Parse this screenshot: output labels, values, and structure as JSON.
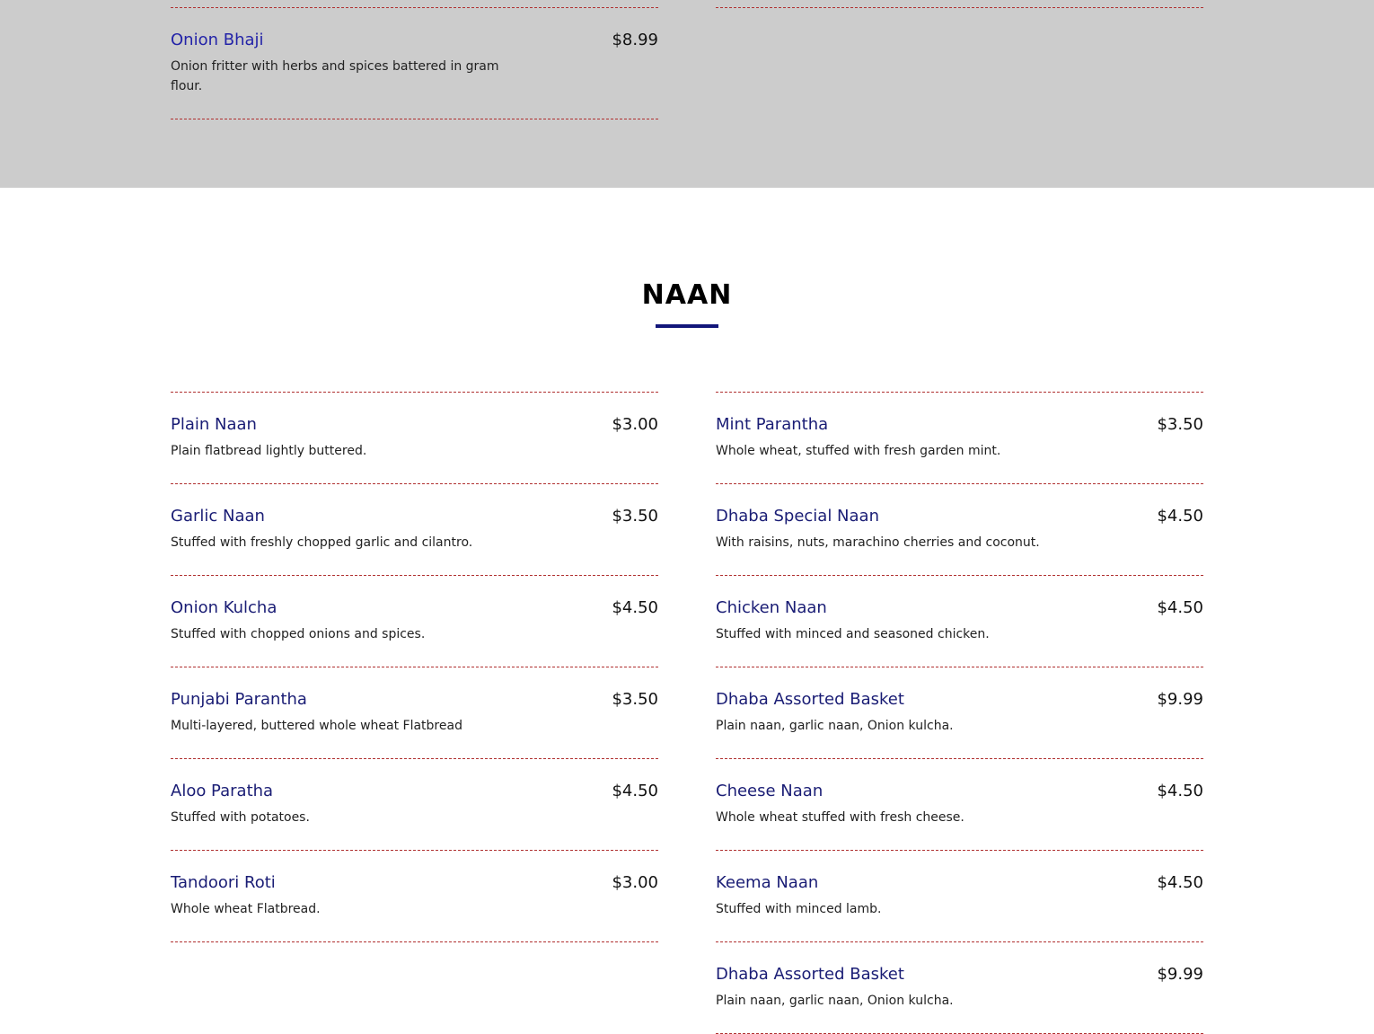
{
  "colors": {
    "gray_section": "#cccccc",
    "item_name": "#1a1d75",
    "item_name_prev_section": "#2323a8",
    "divider": "#b03030",
    "title_underline": "#12167a"
  },
  "previous_section": {
    "items": [
      {
        "name": "Onion Bhaji",
        "price": "$8.99",
        "desc_line1": "Onion fritter with herbs and spices battered in gram",
        "desc_line2": "flour."
      }
    ]
  },
  "naan": {
    "title": "NAAN",
    "left_items": [
      {
        "name": "Plain Naan",
        "price": "$3.00",
        "desc": "Plain flatbread lightly buttered."
      },
      {
        "name": "Garlic Naan",
        "price": "$3.50",
        "desc": "Stuffed with freshly chopped garlic and cilantro."
      },
      {
        "name": "Onion Kulcha",
        "price": "$4.50",
        "desc": "Stuffed with chopped onions and spices."
      },
      {
        "name": "Punjabi Parantha",
        "price": "$3.50",
        "desc": "Multi-layered, buttered whole wheat Flatbread"
      },
      {
        "name": "Aloo Paratha",
        "price": "$4.50",
        "desc": "Stuffed with potatoes."
      },
      {
        "name": "Tandoori Roti",
        "price": "$3.00",
        "desc": "Whole wheat Flatbread."
      }
    ],
    "right_items": [
      {
        "name": "Mint Parantha",
        "price": "$3.50",
        "desc": "Whole wheat, stuffed with fresh garden mint."
      },
      {
        "name": "Dhaba Special Naan",
        "price": "$4.50",
        "desc": "With raisins, nuts, marachino cherries and coconut."
      },
      {
        "name": "Chicken Naan",
        "price": "$4.50",
        "desc": "Stuffed with minced and seasoned chicken."
      },
      {
        "name": "Dhaba Assorted Basket",
        "price": "$9.99",
        "desc": "Plain naan, garlic naan, Onion kulcha."
      },
      {
        "name": "Cheese Naan",
        "price": "$4.50",
        "desc": "Whole wheat stuffed with fresh cheese."
      },
      {
        "name": "Keema Naan",
        "price": "$4.50",
        "desc": "Stuffed with minced lamb."
      },
      {
        "name": "Dhaba Assorted Basket",
        "price": "$9.99",
        "desc": "Plain naan, garlic naan, Onion kulcha."
      }
    ]
  }
}
